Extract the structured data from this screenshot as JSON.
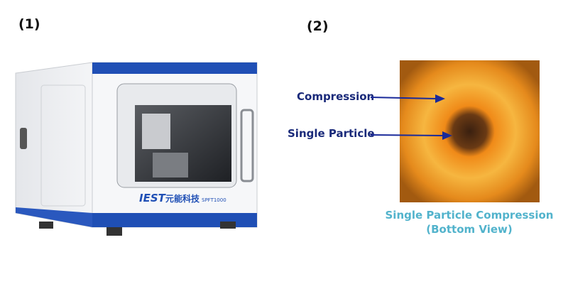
{
  "panels": [
    {
      "label": "(1)",
      "brand": "IEST",
      "brand_cn": "元能科技",
      "model": "SPFT1000"
    },
    {
      "label": "(2)",
      "annotations": [
        "Compression",
        "Single Particle"
      ],
      "caption": [
        "Single Particle Compression",
        "(Bottom View)"
      ]
    }
  ]
}
